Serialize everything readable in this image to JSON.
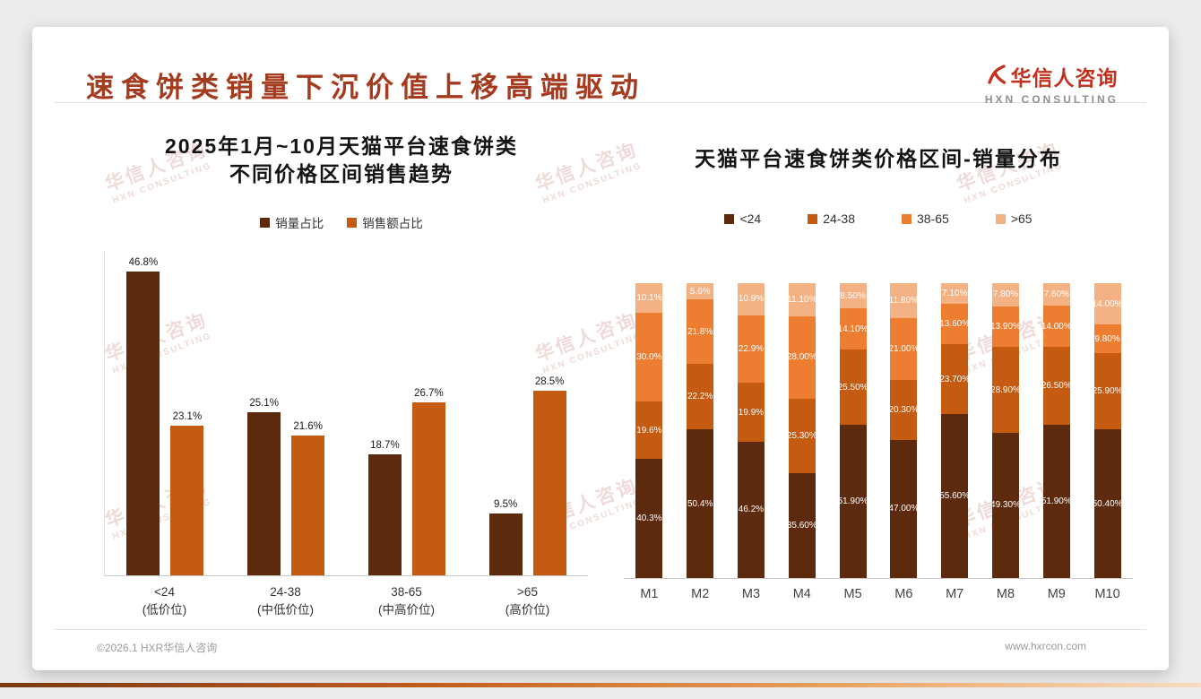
{
  "page_title": "速食饼类销量下沉价值上移高端驱动",
  "logo": {
    "cn": "华信人咨询",
    "en": "HXN CONSULTING"
  },
  "watermark": {
    "cn": "华信人咨询",
    "en": "HXN CONSULTING"
  },
  "footer": {
    "copyright": "©2026.1 HXR华信人咨询",
    "website": "www.hxrcon.com"
  },
  "colors": {
    "title": "#A43A1E",
    "logo_red": "#C3321E",
    "series_lt24": "#5E2A0E",
    "series_24_38": "#C55A11",
    "series_38_65": "#ED7D31",
    "series_gt65": "#F4B183"
  },
  "chart_data": [
    {
      "type": "bar",
      "title_lines": [
        "2025年1月~10月天猫平台速食饼类",
        "不同价格区间销售趋势"
      ],
      "categories": [
        "<24",
        "24-38",
        "38-65",
        ">65"
      ],
      "category_subtitles": [
        "(低价位)",
        "(中低价位)",
        "(中高价位)",
        "(高价位)"
      ],
      "ylim": [
        0,
        50
      ],
      "legend_position": "top",
      "series": [
        {
          "name": "销量占比",
          "color": "#5E2A0E",
          "values": [
            46.8,
            25.1,
            18.7,
            9.5
          ],
          "labels": [
            "46.8%",
            "25.1%",
            "18.7%",
            "9.5%"
          ]
        },
        {
          "name": "销售额占比",
          "color": "#C55A11",
          "values": [
            23.1,
            21.6,
            26.7,
            28.5
          ],
          "labels": [
            "23.1%",
            "21.6%",
            "26.7%",
            "28.5%"
          ]
        }
      ]
    },
    {
      "type": "stacked-bar",
      "title": "天猫平台速食饼类价格区间-销量分布",
      "categories": [
        "M1",
        "M2",
        "M3",
        "M4",
        "M5",
        "M6",
        "M7",
        "M8",
        "M9",
        "M10"
      ],
      "ylim": [
        0,
        100
      ],
      "legend_position": "top",
      "stack_order_bottom_to_top": [
        "<24",
        "24-38",
        "38-65",
        ">65"
      ],
      "series": [
        {
          "name": "<24",
          "color": "#5E2A0E",
          "values": [
            40.3,
            50.4,
            46.2,
            35.6,
            51.9,
            47.0,
            55.6,
            49.3,
            51.9,
            50.4
          ],
          "labels": [
            "40.3%",
            "50.4%",
            "46.2%",
            "35.60%",
            "51.90%",
            "47.00%",
            "55.60%",
            "49.30%",
            "51.90%",
            "50.40%"
          ]
        },
        {
          "name": "24-38",
          "color": "#C55A11",
          "values": [
            19.6,
            22.2,
            19.9,
            25.3,
            25.5,
            20.3,
            23.7,
            28.9,
            26.5,
            25.9
          ],
          "labels": [
            "19.6%",
            "22.2%",
            "19.9%",
            "25.30%",
            "25.50%",
            "20.30%",
            "23.70%",
            "28.90%",
            "26.50%",
            "25.90%"
          ]
        },
        {
          "name": "38-65",
          "color": "#ED7D31",
          "values": [
            30.0,
            21.8,
            22.9,
            28.0,
            14.1,
            21.0,
            13.6,
            13.9,
            14.0,
            9.8
          ],
          "labels": [
            "30.0%",
            "21.8%",
            "22.9%",
            "28.00%",
            "14.10%",
            "21.00%",
            "13.60%",
            "13.90%",
            "14.00%",
            "9.80%"
          ]
        },
        {
          "name": ">65",
          "color": "#F4B183",
          "values": [
            10.1,
            5.6,
            10.9,
            11.1,
            8.5,
            11.8,
            7.1,
            7.8,
            7.6,
            14.0
          ],
          "labels": [
            "10.1%",
            "5.6%",
            "10.9%",
            "11.10%",
            "8.50%",
            "11.80%",
            "7.10%",
            "7.80%",
            "7.60%",
            "14.00%"
          ]
        }
      ]
    }
  ]
}
